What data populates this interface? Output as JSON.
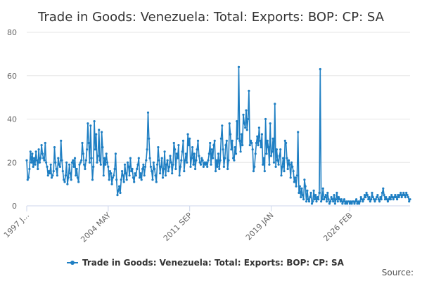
{
  "chart_data": {
    "type": "line",
    "title": "Trade in Goods: Venezuela: Total: Exports: BOP: CP: SA",
    "xlabel": "",
    "ylabel": "",
    "ylim": [
      0,
      80
    ],
    "yticks": [
      0,
      20,
      40,
      60,
      80
    ],
    "x_tick_labels": [
      "1997 J...",
      "2004 MAY",
      "2011 SEP",
      "2019 JAN",
      "2026 FEB"
    ],
    "x_tick_indices": [
      0,
      88,
      176,
      264,
      349
    ],
    "grid": true,
    "legend_position": "bottom",
    "source_label": "Source:",
    "color": "#1f7fc3",
    "series": [
      {
        "name": "Trade in Goods: Venezuela: Total: Exports: BOP: CP: SA",
        "values": [
          21,
          12,
          13,
          17,
          25,
          20,
          24,
          18,
          22,
          19,
          25,
          21,
          17,
          26,
          20,
          22,
          28,
          24,
          22,
          21,
          29,
          20,
          18,
          14,
          16,
          15,
          19,
          13,
          14,
          16,
          27,
          20,
          17,
          14,
          22,
          19,
          18,
          30,
          21,
          16,
          12,
          11,
          14,
          20,
          10,
          13,
          19,
          15,
          12,
          20,
          21,
          18,
          22,
          14,
          17,
          13,
          11,
          19,
          20,
          21,
          29,
          24,
          19,
          17,
          21,
          26,
          38,
          29,
          20,
          37,
          22,
          12,
          18,
          39,
          26,
          33,
          20,
          23,
          35,
          21,
          19,
          34,
          27,
          14,
          22,
          19,
          24,
          20,
          18,
          12,
          16,
          15,
          10,
          13,
          14,
          17,
          24,
          12,
          5,
          7,
          9,
          6,
          12,
          16,
          14,
          11,
          19,
          15,
          12,
          20,
          18,
          14,
          22,
          16,
          17,
          13,
          11,
          15,
          14,
          17,
          19,
          22,
          13,
          15,
          12,
          17,
          19,
          14,
          18,
          21,
          26,
          43,
          31,
          22,
          18,
          16,
          12,
          20,
          17,
          14,
          11,
          19,
          27,
          21,
          15,
          18,
          22,
          13,
          17,
          25,
          14,
          19,
          21,
          16,
          18,
          23,
          20,
          15,
          19,
          29,
          26,
          17,
          24,
          22,
          28,
          14,
          18,
          21,
          25,
          30,
          16,
          21,
          24,
          20,
          33,
          28,
          31,
          18,
          22,
          27,
          19,
          24,
          17,
          21,
          26,
          30,
          23,
          20,
          19,
          22,
          21,
          18,
          20,
          19,
          20,
          18,
          21,
          24,
          29,
          19,
          26,
          22,
          28,
          30,
          16,
          21,
          18,
          24,
          17,
          21,
          31,
          37,
          26,
          18,
          22,
          28,
          30,
          17,
          21,
          38,
          33,
          26,
          30,
          22,
          21,
          27,
          24,
          39,
          31,
          64,
          30,
          25,
          33,
          28,
          42,
          38,
          36,
          44,
          35,
          40,
          53,
          28,
          30,
          29,
          26,
          16,
          18,
          24,
          29,
          32,
          28,
          36,
          30,
          27,
          33,
          19,
          22,
          16,
          40,
          24,
          30,
          27,
          19,
          38,
          23,
          25,
          31,
          20,
          47,
          18,
          26,
          21,
          19,
          23,
          26,
          14,
          18,
          22,
          16,
          30,
          29,
          22,
          17,
          21,
          19,
          13,
          20,
          18,
          16,
          11,
          13,
          9,
          14,
          34,
          6,
          9,
          4,
          8,
          5,
          3,
          12,
          9,
          2,
          7,
          3,
          2,
          4,
          6,
          1,
          2,
          7,
          3,
          5,
          2,
          4,
          3,
          6,
          63,
          2,
          3,
          8,
          3,
          4,
          5,
          2,
          6,
          3,
          1,
          2,
          4,
          3,
          2,
          5,
          1,
          3,
          6,
          2,
          4,
          3,
          2,
          3,
          1,
          2,
          3,
          1,
          2,
          1,
          2,
          2,
          1,
          2,
          1,
          2,
          2,
          1,
          2,
          3,
          1,
          2,
          1,
          2,
          4,
          3,
          2,
          3,
          5,
          4,
          6,
          5,
          3,
          4,
          2,
          3,
          6,
          4,
          3,
          2,
          3,
          4,
          5,
          3,
          2,
          4,
          3,
          6,
          8,
          5,
          3,
          4,
          3,
          2,
          3,
          4,
          3,
          5,
          4,
          3,
          4,
          5,
          4,
          3,
          5,
          4,
          5,
          6,
          4,
          5,
          6,
          5,
          4,
          6,
          5,
          4,
          2,
          3
        ]
      }
    ]
  }
}
